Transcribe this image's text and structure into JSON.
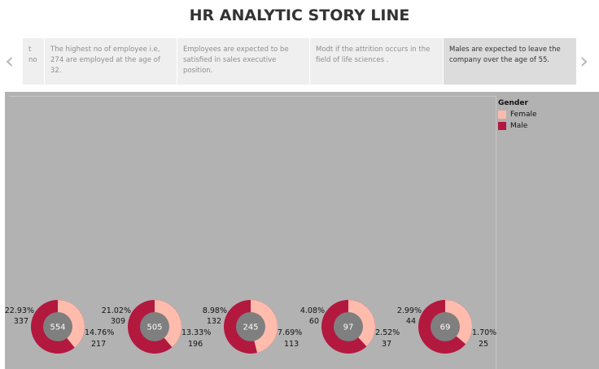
{
  "story": {
    "title": "HR ANALYTIC STORY LINE",
    "prev_arrow": "‹",
    "next_arrow": "›",
    "points": [
      {
        "text": "t no"
      },
      {
        "text": "The highest no of employee i.e, 274 are employed at the age of 32."
      },
      {
        "text": "Employees are expected to be satisfied in sales executive position."
      },
      {
        "text": "Modt if the attrition occurs in the field of life sciences ."
      },
      {
        "text": "Males are expected to leave the company over the age of  55."
      }
    ]
  },
  "legend": {
    "title": "Gender",
    "items": [
      {
        "label": "Female",
        "color": "#ffbcac"
      },
      {
        "label": "Male",
        "color": "#b3183f"
      }
    ]
  },
  "chart_data": {
    "type": "pie",
    "variant": "donut",
    "series": [
      {
        "name": "Female",
        "color": "#ffbcac"
      },
      {
        "name": "Male",
        "color": "#b3183f"
      }
    ],
    "donuts": [
      {
        "total": "554",
        "female": {
          "pct": "14.76%",
          "count": "217"
        },
        "male": {
          "pct": "22.93%",
          "count": "337"
        },
        "female_pct_value": 39.2
      },
      {
        "total": "505",
        "female": {
          "pct": "13.33%",
          "count": "196"
        },
        "male": {
          "pct": "21.02%",
          "count": "309"
        },
        "female_pct_value": 38.8
      },
      {
        "total": "245",
        "female": {
          "pct": "7.69%",
          "count": "113"
        },
        "male": {
          "pct": "8.98%",
          "count": "132"
        },
        "female_pct_value": 46.1
      },
      {
        "total": "97",
        "female": {
          "pct": "2.52%",
          "count": "37"
        },
        "male": {
          "pct": "4.08%",
          "count": "60"
        },
        "female_pct_value": 38.1
      },
      {
        "total": "69",
        "female": {
          "pct": "1.70%",
          "count": "25"
        },
        "male": {
          "pct": "2.99%",
          "count": "44"
        },
        "female_pct_value": 36.2
      }
    ]
  }
}
